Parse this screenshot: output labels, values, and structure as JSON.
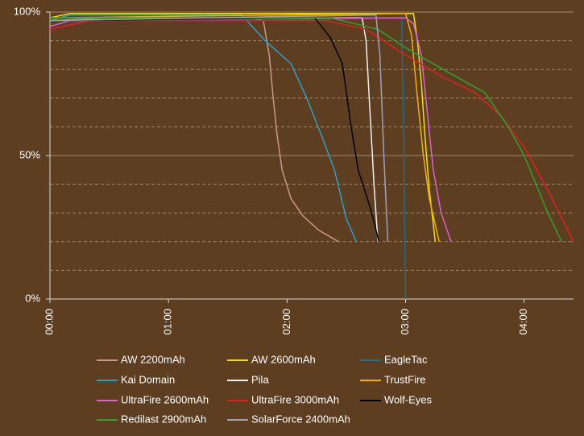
{
  "chart_data": {
    "type": "line",
    "xlim": [
      0,
      265
    ],
    "ylim": [
      0,
      100
    ],
    "xticks": [
      {
        "value": 0,
        "label": "00:00"
      },
      {
        "value": 60,
        "label": "01:00"
      },
      {
        "value": 120,
        "label": "02:00"
      },
      {
        "value": 180,
        "label": "03:00"
      },
      {
        "value": 240,
        "label": "04:00"
      }
    ],
    "yticks": [
      {
        "value": 0,
        "label": "0%"
      },
      {
        "value": 50,
        "label": "50%"
      },
      {
        "value": 100,
        "label": "100%"
      }
    ],
    "minor_yticks": [
      10,
      20,
      30,
      40,
      60,
      70,
      80,
      90
    ],
    "grid": true,
    "legend": "bottom",
    "series": [
      {
        "name": "AW 2200mAh",
        "color": "#c8988a",
        "x": [
          0,
          30,
          100,
          108,
          111,
          113,
          115,
          117.5,
          122,
          128,
          136,
          146
        ],
        "values": [
          97,
          98,
          98,
          97,
          85,
          70,
          57,
          45,
          35,
          29,
          24,
          20
        ]
      },
      {
        "name": "AW 2600mAh",
        "color": "#f0e000",
        "x": [
          0,
          10,
          184,
          186,
          188,
          190,
          192,
          195
        ],
        "values": [
          98,
          99.5,
          99.5,
          90,
          75,
          55,
          38,
          20
        ]
      },
      {
        "name": "EagleTac",
        "color": "#1f6f8f",
        "x": [
          0,
          100,
          178,
          179,
          180
        ],
        "values": [
          97,
          98,
          98,
          60,
          0
        ]
      },
      {
        "name": "Kai Domain",
        "color": "#2aa0c8",
        "x": [
          0,
          10,
          97,
          109,
          122,
          130,
          138,
          144,
          150,
          155
        ],
        "values": [
          97,
          99,
          99,
          90,
          82,
          70,
          56,
          45,
          28,
          20
        ]
      },
      {
        "name": "Pila",
        "color": "#f0f0f0",
        "x": [
          0,
          158,
          160,
          162,
          164,
          166
        ],
        "values": [
          97,
          98,
          90,
          65,
          40,
          20
        ]
      },
      {
        "name": "TrustFire",
        "color": "#f0b000",
        "x": [
          0,
          180,
          183,
          186,
          189,
          192,
          197
        ],
        "values": [
          98,
          99.5,
          92,
          70,
          50,
          35,
          20
        ]
      },
      {
        "name": "UltraFire  2600mAh",
        "color": "#e060d0",
        "x": [
          0,
          10,
          180,
          184,
          188,
          191,
          194,
          198,
          203
        ],
        "values": [
          95,
          97,
          98,
          96,
          85,
          65,
          45,
          30,
          20
        ]
      },
      {
        "name": "UltraFire  3000mAh",
        "color": "#e02020",
        "x": [
          0,
          20,
          140,
          160,
          180,
          200,
          215,
          228,
          240,
          252,
          265
        ],
        "values": [
          94,
          97,
          97,
          94,
          85,
          77,
          72,
          64,
          53,
          38,
          20
        ]
      },
      {
        "name": "Wolf-Eyes",
        "color": "#000000",
        "x": [
          0,
          134,
          142,
          148,
          152,
          156,
          162.5,
          166.5
        ],
        "values": [
          97,
          98,
          91,
          82,
          62,
          45,
          31,
          20
        ]
      },
      {
        "name": "Redilast 2900mAh",
        "color": "#30a030",
        "x": [
          0,
          142,
          166,
          179,
          199,
          220,
          232,
          240,
          252,
          259
        ],
        "values": [
          98,
          98,
          94,
          88,
          80,
          72,
          60,
          50,
          30,
          20
        ]
      },
      {
        "name": "SolarForce 2400mAh",
        "color": "#a0a0b8",
        "x": [
          0,
          165,
          167,
          169,
          171
        ],
        "values": [
          97,
          99,
          85,
          50,
          20
        ]
      }
    ]
  }
}
